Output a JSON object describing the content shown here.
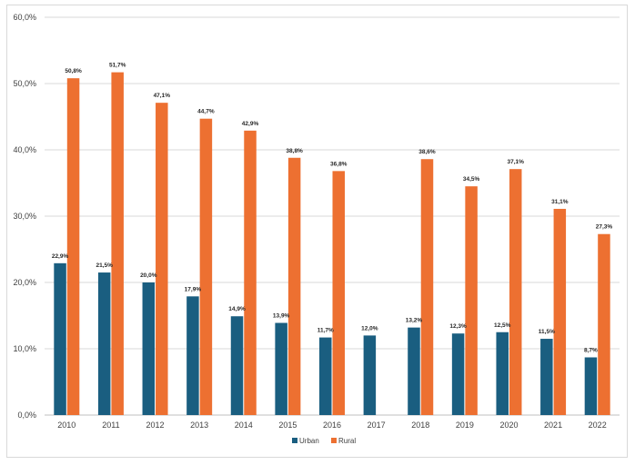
{
  "chart_data": {
    "type": "bar",
    "title": "",
    "xlabel": "",
    "ylabel": "",
    "ylim": [
      0,
      60
    ],
    "y_ticks": [
      "0,0%",
      "10,0%",
      "20,0%",
      "30,0%",
      "40,0%",
      "50,0%",
      "60,0%"
    ],
    "grid": true,
    "legend_position": "bottom",
    "categories": [
      "2010",
      "2011",
      "2012",
      "2013",
      "2014",
      "2015",
      "2016",
      "2017",
      "2018",
      "2019",
      "2020",
      "2021",
      "2022"
    ],
    "series": [
      {
        "name": "Urban",
        "color": "#1a5e80",
        "values": [
          22.9,
          21.5,
          20.0,
          17.9,
          14.9,
          13.9,
          11.7,
          12.0,
          13.2,
          12.3,
          12.5,
          11.5,
          8.7
        ],
        "labels": [
          "22,9%",
          "21,5%",
          "20,0%",
          "17,9%",
          "14,9%",
          "13,9%",
          "11,7%",
          "12,0%",
          "13,2%",
          "12,3%",
          "12,5%",
          "11,5%",
          "8,7%"
        ]
      },
      {
        "name": "Rural",
        "color": "#ed7031",
        "values": [
          50.8,
          51.7,
          47.1,
          44.7,
          42.9,
          38.8,
          36.8,
          null,
          38.6,
          34.5,
          37.1,
          31.1,
          27.3
        ],
        "labels": [
          "50,8%",
          "51,7%",
          "47,1%",
          "44,7%",
          "42,9%",
          "38,8%",
          "36,8%",
          null,
          "38,6%",
          "34,5%",
          "37,1%",
          "31,1%",
          "27,3%"
        ]
      }
    ]
  }
}
